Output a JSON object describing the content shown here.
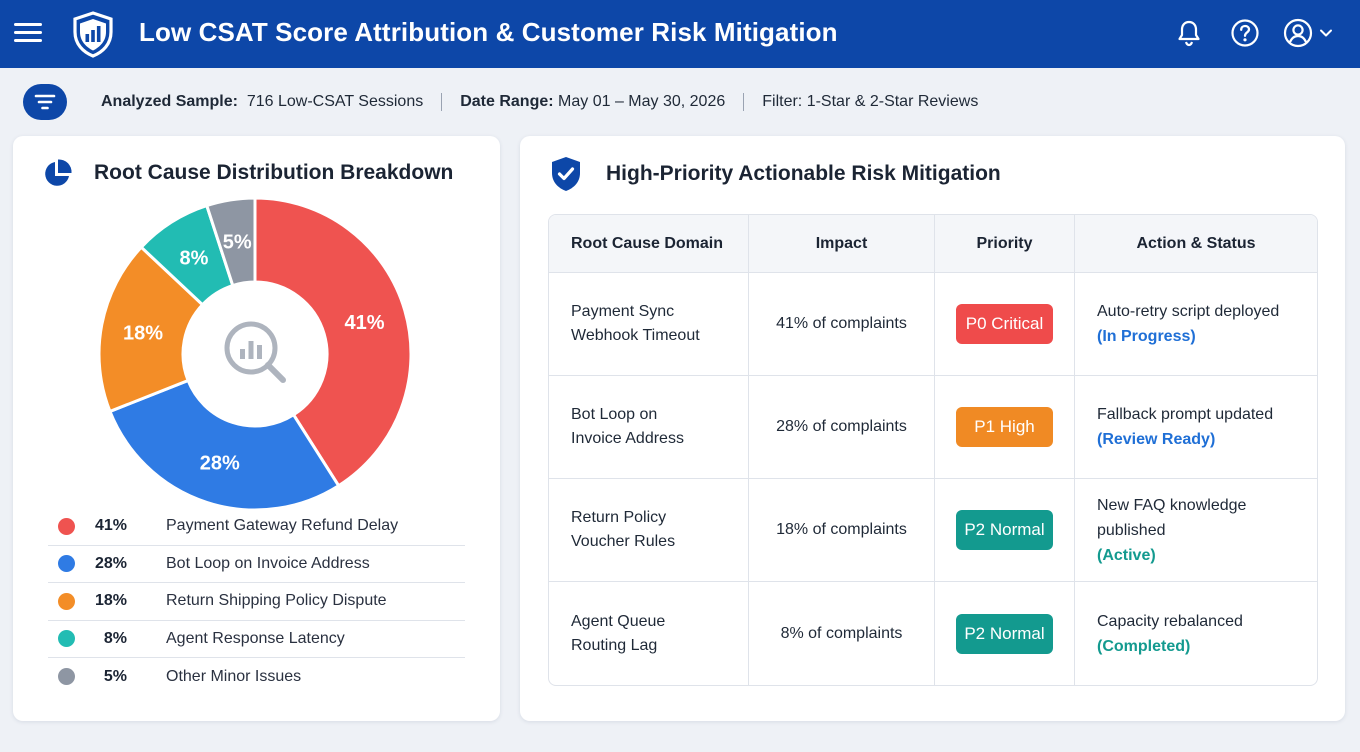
{
  "header": {
    "title": "Low CSAT Score Attribution & Customer Risk Mitigation",
    "icons": [
      "menu-icon",
      "shield-logo-icon",
      "bell-icon",
      "help-icon",
      "user-icon",
      "chevron-down-icon"
    ]
  },
  "filter_bar": {
    "sample_label": "Analyzed Sample:",
    "sample_value": "716 Low-CSAT Sessions",
    "date_label": "Date Range:",
    "date_value": "May 01 – May 30, 2026",
    "filter_label": "Filter:",
    "filter_value": "1-Star & 2-Star Reviews"
  },
  "breakdown": {
    "title": "Root Cause Distribution Breakdown",
    "legend": [
      {
        "pct": "41%",
        "label": "Payment Gateway Refund Delay",
        "color": "#ef5350"
      },
      {
        "pct": "28%",
        "label": "Bot Loop on Invoice Address",
        "color": "#2f7be4"
      },
      {
        "pct": "18%",
        "label": "Return Shipping Policy Dispute",
        "color": "#f38d27"
      },
      {
        "pct": "8%",
        "label": "Agent Response Latency",
        "color": "#22bcb3"
      },
      {
        "pct": "5%",
        "label": "Other Minor Issues",
        "color": "#8e96a3"
      }
    ]
  },
  "chart_data": {
    "type": "pie",
    "title": "",
    "categories": [
      "Payment Gateway Refund Delay",
      "Bot Loop on Invoice Address",
      "Return Shipping Policy Dispute",
      "Agent Response Latency",
      "Other Minor Issues"
    ],
    "values": [
      41,
      28,
      18,
      8,
      5
    ],
    "labels": [
      "41%",
      "28%",
      "18%",
      "8%",
      "5%"
    ],
    "colors": [
      "#ef5350",
      "#2f7be4",
      "#f38d27",
      "#22bcb3",
      "#8e96a3"
    ],
    "donut": true,
    "center_icon": "magnifier-chart-icon"
  },
  "mitigation": {
    "title": "High-Priority Actionable Risk Mitigation",
    "columns": [
      "Root Cause Domain",
      "Impact",
      "Priority",
      "Action & Status"
    ],
    "rows": [
      {
        "domain_line1": "Payment Sync",
        "domain_line2": "Webhook Timeout",
        "impact": "41% of complaints",
        "priority": "P0 Critical",
        "priority_color": "#ef4b4b",
        "action": "Auto-retry script deployed",
        "status": "(In Progress)",
        "status_color": "#1f6fd6"
      },
      {
        "domain_line1": "Bot Loop on",
        "domain_line2": "Invoice Address",
        "impact": "28% of complaints",
        "priority": "P1 High",
        "priority_color": "#f08a24",
        "action": "Fallback prompt updated",
        "status": "(Review Ready)",
        "status_color": "#1f6fd6"
      },
      {
        "domain_line1": "Return Policy",
        "domain_line2": "Voucher Rules",
        "impact": "18% of complaints",
        "priority": "P2 Normal",
        "priority_color": "#139a8f",
        "action": "New FAQ knowledge published",
        "status": "(Active)",
        "status_color": "#139a8f"
      },
      {
        "domain_line1": "Agent Queue",
        "domain_line2": "Routing Lag",
        "impact": "8% of complaints",
        "priority": "P2 Normal",
        "priority_color": "#139a8f",
        "action": "Capacity rebalanced",
        "status": "(Completed)",
        "status_color": "#139a8f"
      }
    ]
  }
}
